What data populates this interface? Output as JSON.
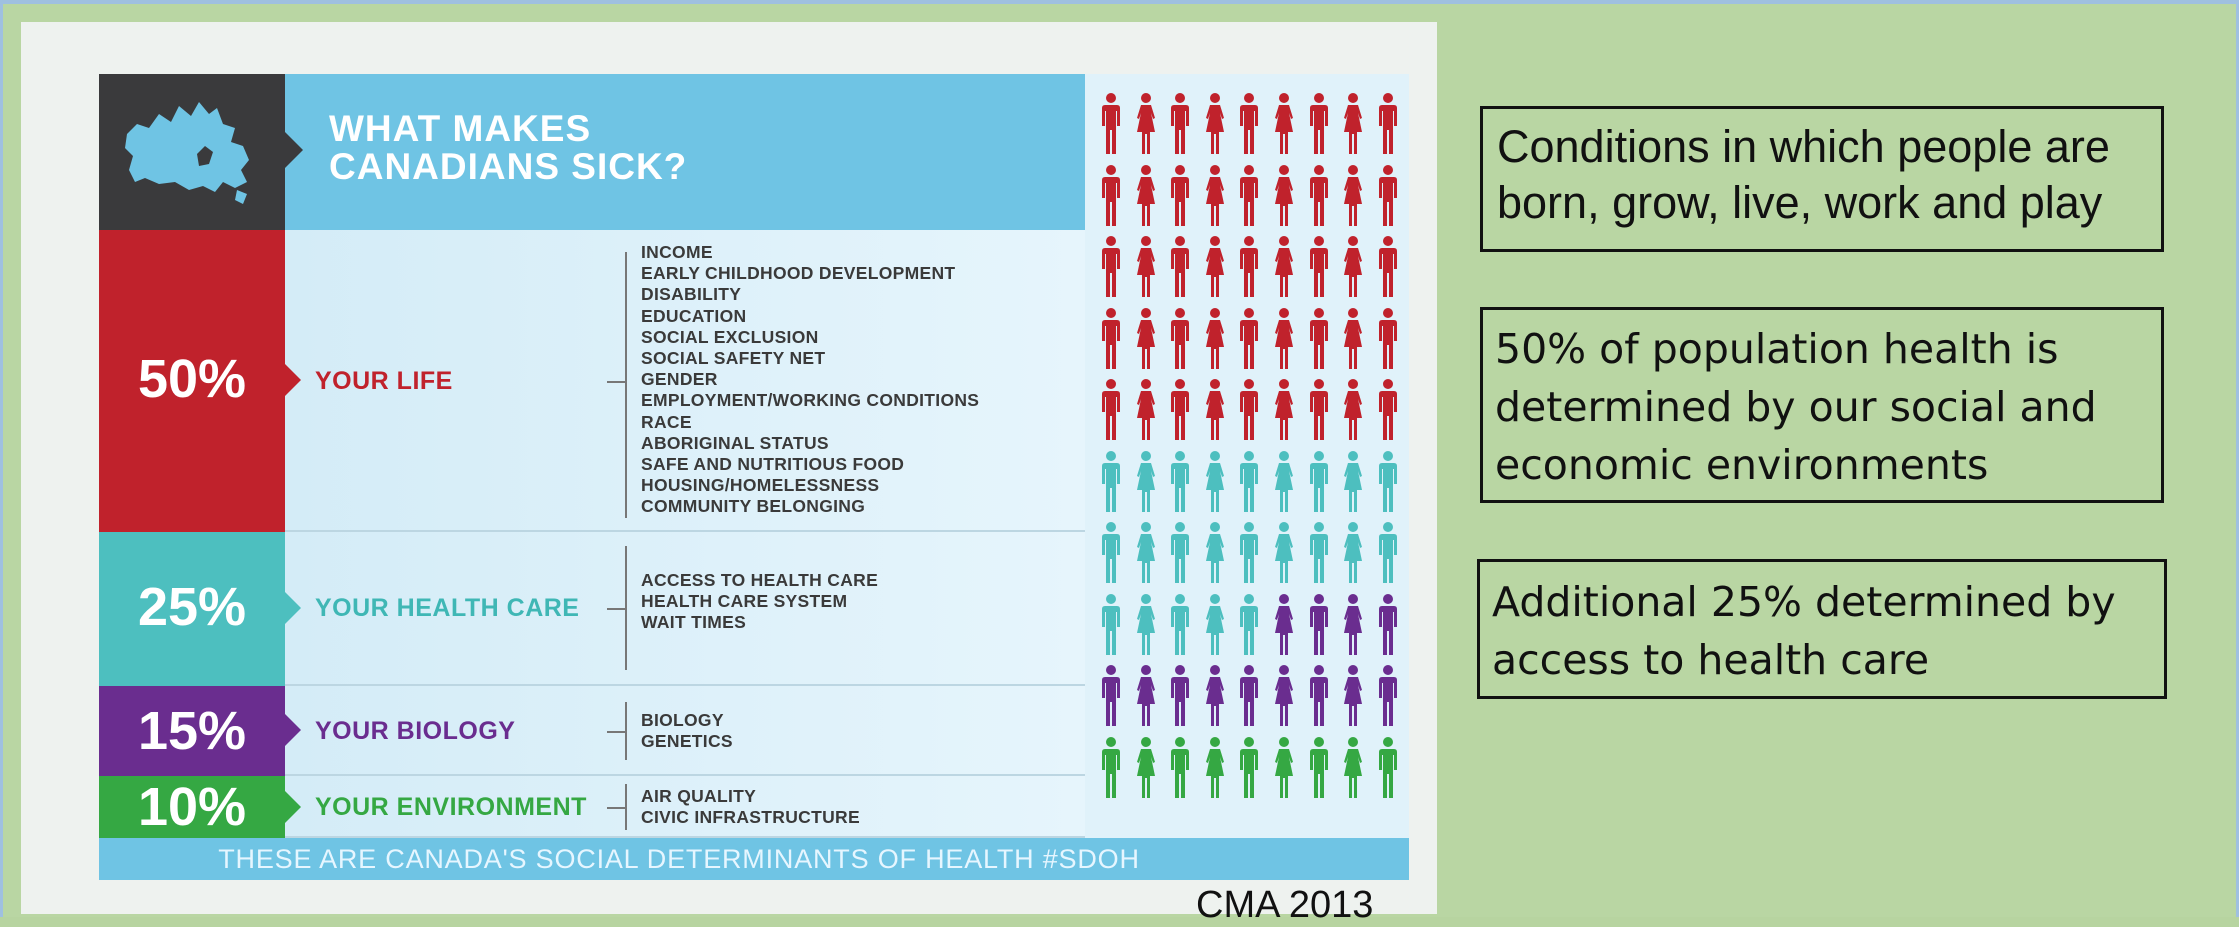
{
  "infographic": {
    "title": "WHAT MAKES\nCANADIANS SICK?",
    "rows": [
      {
        "percent": "50%",
        "label": "YOUR LIFE",
        "color": "#c0222c",
        "label_color": "#c0222c",
        "items": [
          "INCOME",
          "EARLY CHILDHOOD DEVELOPMENT",
          "DISABILITY",
          "EDUCATION",
          "SOCIAL EXCLUSION",
          "SOCIAL SAFETY NET",
          "GENDER",
          "EMPLOYMENT/WORKING CONDITIONS",
          "RACE",
          "ABORIGINAL STATUS",
          "SAFE AND NUTRITIOUS FOOD",
          "HOUSING/HOMELESSNESS",
          "COMMUNITY BELONGING"
        ]
      },
      {
        "percent": "25%",
        "label": "YOUR HEALTH CARE",
        "color": "#4dbfbf",
        "label_color": "#3fb7b5",
        "items": [
          "ACCESS TO HEALTH CARE",
          "HEALTH CARE SYSTEM",
          "WAIT TIMES"
        ]
      },
      {
        "percent": "15%",
        "label": "YOUR BIOLOGY",
        "color": "#6a2d8f",
        "label_color": "#6a2d8f",
        "items": [
          "BIOLOGY",
          "GENETICS"
        ]
      },
      {
        "percent": "10%",
        "label": "YOUR ENVIRONMENT",
        "color": "#35a843",
        "label_color": "#35a843",
        "items": [
          "AIR QUALITY",
          "CIVIC INFRASTRUCTURE"
        ]
      }
    ],
    "footer": "THESE ARE CANADA'S SOCIAL DETERMINANTS OF HEALTH  #SDOH",
    "figure_grid": {
      "columns": 10,
      "rows": 10,
      "counts": [
        50,
        25,
        15,
        10
      ]
    }
  },
  "credit": "CMA 2013",
  "callouts": [
    "Conditions in which people are born, grow, live, work and play",
    "50% of population health is determined by  our social and economic environments",
    "Additional 25% determined by access to health care"
  ],
  "colors": {
    "background": "#b9d6a3",
    "header_blue": "#6fc4e4",
    "map_block": "#3a3a3c"
  }
}
